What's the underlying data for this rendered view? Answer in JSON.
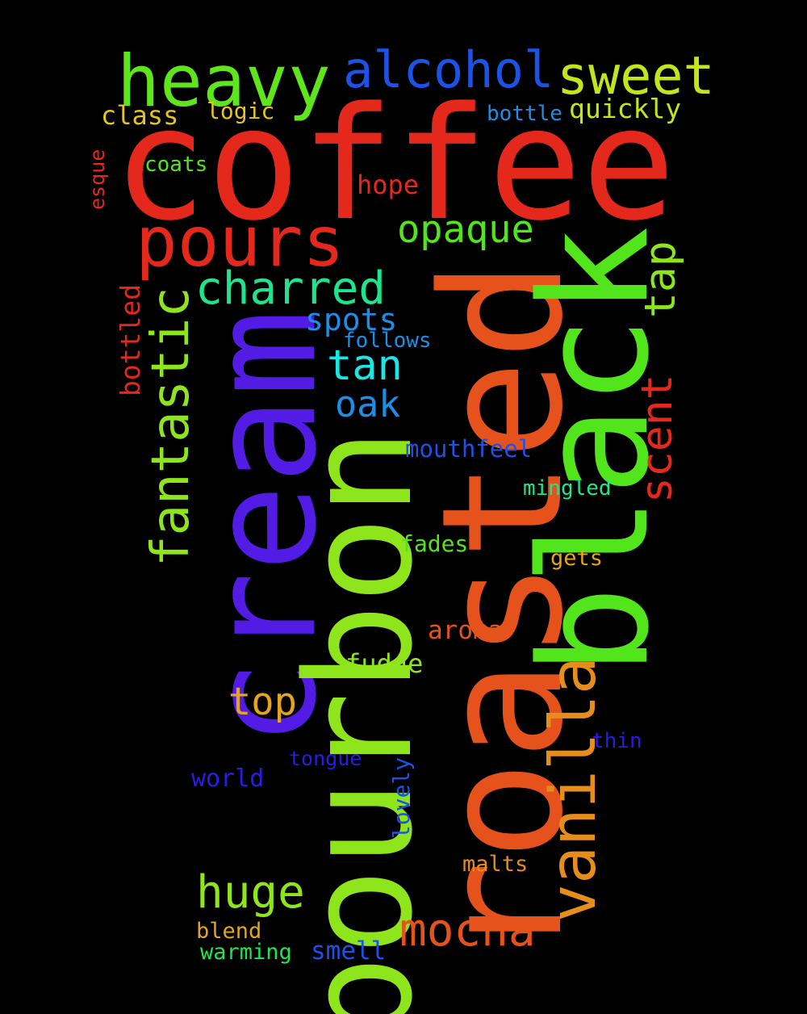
{
  "words": [
    {
      "text": "coffee",
      "color": "#e5281c",
      "orientation": "horizontal"
    },
    {
      "text": "roasted",
      "color": "#e5521c",
      "orientation": "vertical"
    },
    {
      "text": "black",
      "color": "#52e51c",
      "orientation": "vertical"
    },
    {
      "text": "cream",
      "color": "#521ce5",
      "orientation": "vertical"
    },
    {
      "text": "bourbon",
      "color": "#8ee51c",
      "orientation": "vertical"
    },
    {
      "text": "vanilla",
      "color": "#e58e1c",
      "orientation": "vertical"
    },
    {
      "text": "heavy",
      "color": "#5ee51c",
      "orientation": "horizontal"
    },
    {
      "text": "pours",
      "color": "#e5281c",
      "orientation": "horizontal"
    },
    {
      "text": "alcohol",
      "color": "#1c52e5",
      "orientation": "horizontal"
    },
    {
      "text": "sweet",
      "color": "#c4e51c",
      "orientation": "horizontal"
    },
    {
      "text": "fantastic",
      "color": "#8ee51c",
      "orientation": "vertical"
    },
    {
      "text": "charred",
      "color": "#1ce58e",
      "orientation": "horizontal"
    },
    {
      "text": "mocha",
      "color": "#e5521c",
      "orientation": "horizontal"
    },
    {
      "text": "huge",
      "color": "#8ee51c",
      "orientation": "horizontal"
    },
    {
      "text": "tap",
      "color": "#8ee51c",
      "orientation": "vertical"
    },
    {
      "text": "scent",
      "color": "#e5281c",
      "orientation": "vertical"
    },
    {
      "text": "opaque",
      "color": "#52e51c",
      "orientation": "horizontal"
    },
    {
      "text": "tan",
      "color": "#1ce5e5",
      "orientation": "horizontal"
    },
    {
      "text": "oak",
      "color": "#1c8ee5",
      "orientation": "horizontal"
    },
    {
      "text": "top",
      "color": "#e5a41c",
      "orientation": "horizontal"
    },
    {
      "text": "spots",
      "color": "#1c8ee5",
      "orientation": "horizontal"
    },
    {
      "text": "bottled",
      "color": "#e5281c",
      "orientation": "vertical"
    },
    {
      "text": "quickly",
      "color": "#c4e51c",
      "orientation": "horizontal"
    },
    {
      "text": "class",
      "color": "#e5c41c",
      "orientation": "horizontal"
    },
    {
      "text": "hope",
      "color": "#e5281c",
      "orientation": "horizontal"
    },
    {
      "text": "aroma",
      "color": "#e5521c",
      "orientation": "horizontal"
    },
    {
      "text": "fudge",
      "color": "#8ee51c",
      "orientation": "horizontal"
    },
    {
      "text": "mouthfeel",
      "color": "#1c52e5",
      "orientation": "horizontal"
    },
    {
      "text": "lovely",
      "color": "#1c52e5",
      "orientation": "vertical"
    },
    {
      "text": "world",
      "color": "#281ce5",
      "orientation": "horizontal"
    },
    {
      "text": "smell",
      "color": "#1c52e5",
      "orientation": "horizontal"
    },
    {
      "text": "logic",
      "color": "#e5c41c",
      "orientation": "horizontal"
    },
    {
      "text": "bottle",
      "color": "#1c8ee5",
      "orientation": "horizontal"
    },
    {
      "text": "coats",
      "color": "#52e51c",
      "orientation": "horizontal"
    },
    {
      "text": "follows",
      "color": "#1c8ee5",
      "orientation": "horizontal"
    },
    {
      "text": "mingled",
      "color": "#1ce58e",
      "orientation": "horizontal"
    },
    {
      "text": "fades",
      "color": "#52e51c",
      "orientation": "horizontal"
    },
    {
      "text": "gets",
      "color": "#e5a41c",
      "orientation": "horizontal"
    },
    {
      "text": "thin",
      "color": "#281ce5",
      "orientation": "horizontal"
    },
    {
      "text": "tongue",
      "color": "#281ce5",
      "orientation": "horizontal"
    },
    {
      "text": "malts",
      "color": "#e58e1c",
      "orientation": "horizontal"
    },
    {
      "text": "blend",
      "color": "#e5a41c",
      "orientation": "horizontal"
    },
    {
      "text": "warming",
      "color": "#1ce552",
      "orientation": "horizontal"
    },
    {
      "text": "esque",
      "color": "#e5281c",
      "orientation": "vertical"
    }
  ]
}
